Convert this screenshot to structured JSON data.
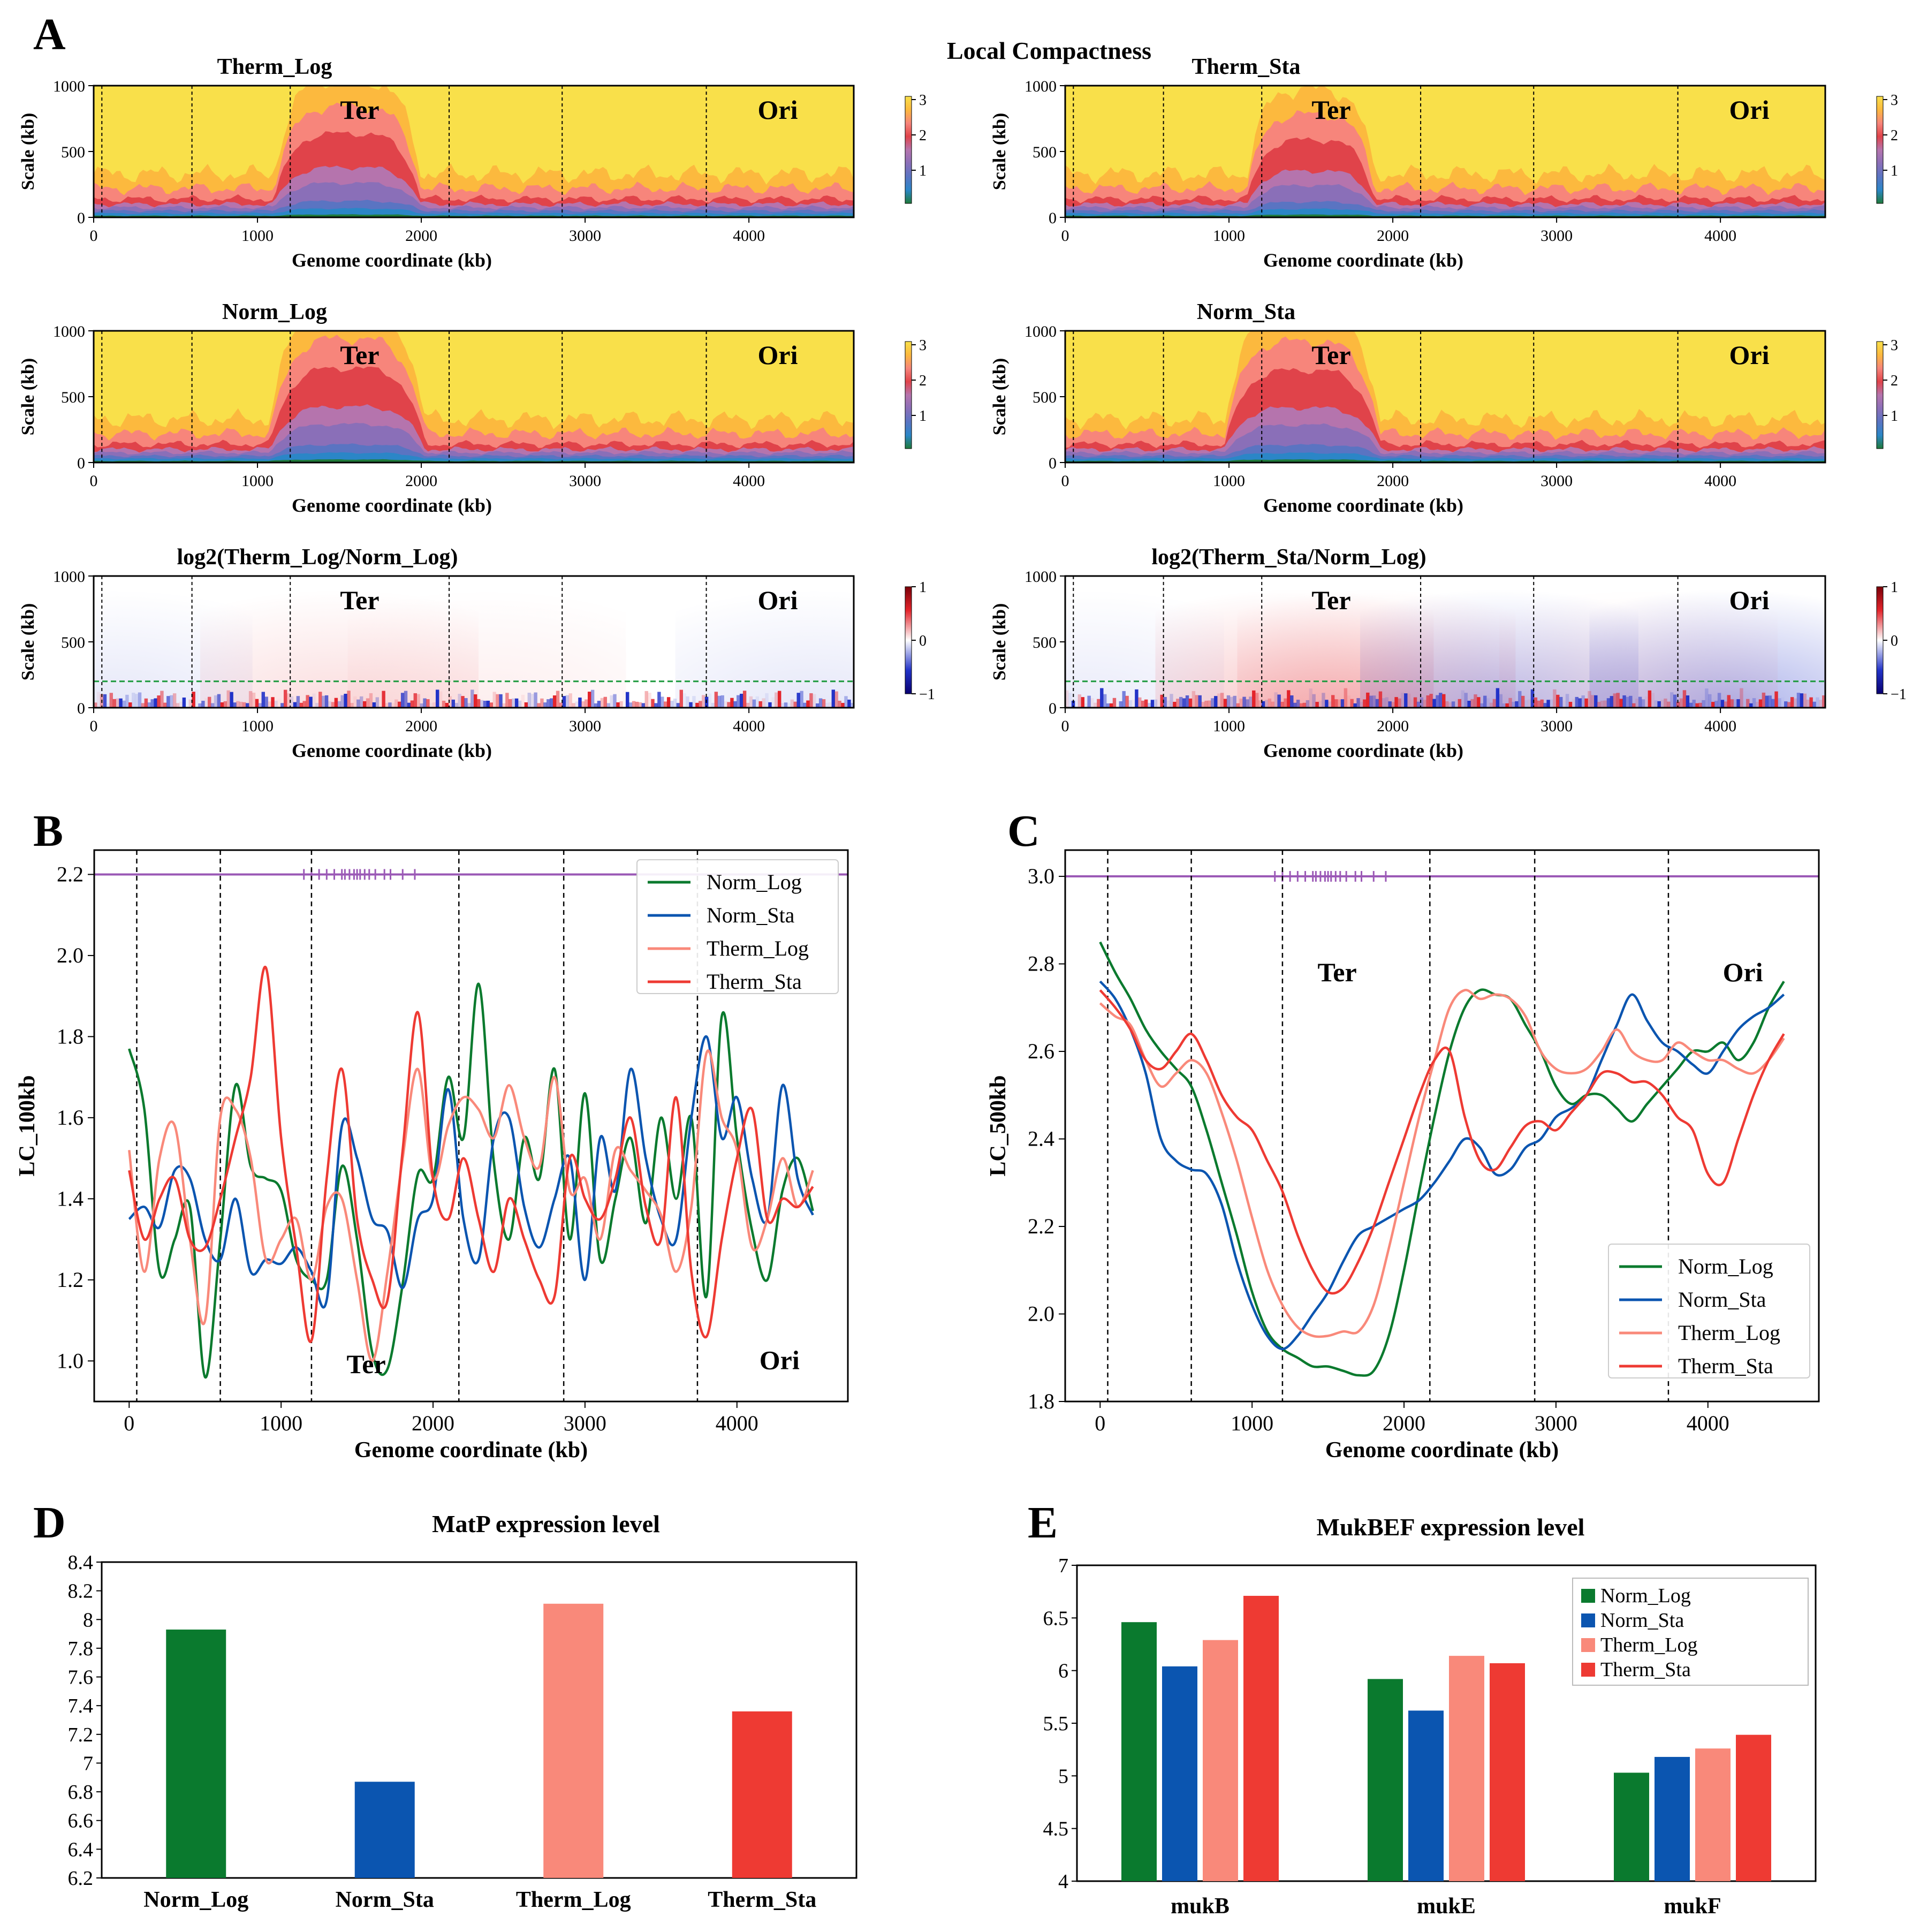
{
  "figure_title": "Local Compactness",
  "colors": {
    "norm_log": "#0a7a2e",
    "norm_sta": "#0b55b0",
    "therm_log": "#f9897a",
    "therm_sta": "#ee3a33",
    "lc_bands": [
      "#1f7a3a",
      "#2b86c7",
      "#5a74c2",
      "#8a6fb8",
      "#b574ad",
      "#e0434a",
      "#f7857b",
      "#fcb93e",
      "#f9e04a"
    ],
    "ratio_pos": "#e3242b",
    "ratio_neg": "#2233c8",
    "guide": "#9b59b6",
    "dashed_threshold": "#1e9a3e"
  },
  "panel_A": {
    "label": "A",
    "common": {
      "xlabel": "Genome coordinate (kb)",
      "ylabel": "Scale (kb)",
      "xticks": [
        "0",
        "1000",
        "2000",
        "3000",
        "4000"
      ],
      "yticks": [
        "0",
        "500",
        "1000"
      ],
      "boundaries_kb": [
        50,
        600,
        1200,
        2170,
        2860,
        3740
      ],
      "region_labels": {
        "ter": "Ter",
        "ori": "Ori"
      },
      "genome_length_kb": 4640,
      "scale_max_kb": 1000
    },
    "heatmaps": [
      {
        "title": "Therm_Log",
        "type": "lc",
        "colorbar_ticks": [
          "3",
          "2",
          "1"
        ],
        "peak_kb": 1550,
        "peak_height": 0.62,
        "ter_width_kb": 900
      },
      {
        "title": "Therm_Sta",
        "type": "lc",
        "colorbar_ticks": [
          "3",
          "2",
          "1"
        ],
        "peak_kb": 1500,
        "peak_height": 0.56,
        "ter_width_kb": 780
      },
      {
        "title": "Norm_Log",
        "type": "lc",
        "colorbar_ticks": [
          "3",
          "2",
          "1"
        ],
        "peak_kb": 1550,
        "peak_height": 0.72,
        "ter_width_kb": 950
      },
      {
        "title": "Norm_Sta",
        "type": "lc",
        "colorbar_ticks": [
          "3",
          "2",
          "1"
        ],
        "peak_kb": 1450,
        "peak_height": 0.7,
        "ter_width_kb": 950
      },
      {
        "title": "log2(Therm_Log/Norm_Log)",
        "type": "ratio",
        "colorbar_ticks": [
          "1",
          "0",
          "−1"
        ],
        "threshold_kb": 200
      },
      {
        "title": "log2(Therm_Sta/Norm_Log)",
        "type": "ratio",
        "colorbar_ticks": [
          "1",
          "0",
          "−1"
        ],
        "threshold_kb": 200
      }
    ]
  },
  "chart_data": [
    {
      "panel": "B",
      "type": "line",
      "title": "",
      "xlabel": "Genome coordinate (kb)",
      "ylabel": "LC_100kb",
      "xlim": [
        -230,
        4730
      ],
      "ylim": [
        0.9,
        2.26
      ],
      "xticks": [
        0,
        1000,
        2000,
        3000,
        4000
      ],
      "yticks": [
        1.0,
        1.2,
        1.4,
        1.6,
        1.8,
        2.0,
        2.2
      ],
      "ytick_labels": [
        "1.0",
        "1.2",
        "1.4",
        "1.6",
        "1.8",
        "2.0",
        "2.2"
      ],
      "guide_y": 2.2,
      "guide_marks_kb": [
        1150,
        1200,
        1250,
        1300,
        1350,
        1400,
        1420,
        1450,
        1480,
        1500,
        1520,
        1550,
        1580,
        1620,
        1680,
        1720,
        1800,
        1880
      ],
      "boundaries_kb": [
        50,
        600,
        1200,
        2170,
        2860,
        3740
      ],
      "region_labels": [
        {
          "text": "Ter",
          "x": 1560,
          "y": 0.97
        },
        {
          "text": "Ori",
          "x": 4280,
          "y": 0.98
        }
      ],
      "legend_position": "top-right",
      "x": [
        0,
        100,
        200,
        300,
        400,
        500,
        600,
        700,
        800,
        900,
        1000,
        1100,
        1200,
        1300,
        1400,
        1500,
        1600,
        1700,
        1800,
        1900,
        2000,
        2100,
        2200,
        2300,
        2400,
        2500,
        2600,
        2700,
        2800,
        2900,
        3000,
        3100,
        3200,
        3300,
        3400,
        3500,
        3600,
        3700,
        3800,
        3900,
        4000,
        4100,
        4200,
        4300,
        4400,
        4500
      ],
      "series": [
        {
          "name": "Norm_Log",
          "color_key": "norm_log",
          "values": [
            1.77,
            1.62,
            1.22,
            1.3,
            1.38,
            0.96,
            1.3,
            1.68,
            1.48,
            1.45,
            1.42,
            1.25,
            1.2,
            1.2,
            1.48,
            1.3,
            1.02,
            0.98,
            1.19,
            1.46,
            1.45,
            1.7,
            1.55,
            1.93,
            1.49,
            1.3,
            1.55,
            1.45,
            1.72,
            1.3,
            1.66,
            1.25,
            1.4,
            1.55,
            1.34,
            1.6,
            1.4,
            1.6,
            1.16,
            1.85,
            1.55,
            1.32,
            1.2,
            1.42,
            1.5,
            1.37
          ]
        },
        {
          "name": "Norm_Sta",
          "color_key": "norm_sta",
          "values": [
            1.35,
            1.38,
            1.33,
            1.47,
            1.45,
            1.3,
            1.25,
            1.4,
            1.22,
            1.25,
            1.24,
            1.28,
            1.22,
            1.15,
            1.58,
            1.5,
            1.35,
            1.32,
            1.18,
            1.35,
            1.4,
            1.67,
            1.35,
            1.25,
            1.55,
            1.6,
            1.38,
            1.28,
            1.4,
            1.5,
            1.2,
            1.55,
            1.42,
            1.72,
            1.5,
            1.35,
            1.3,
            1.6,
            1.8,
            1.55,
            1.65,
            1.45,
            1.35,
            1.68,
            1.45,
            1.36
          ]
        },
        {
          "name": "Therm_Log",
          "color_key": "therm_log",
          "values": [
            1.52,
            1.22,
            1.5,
            1.58,
            1.3,
            1.1,
            1.6,
            1.62,
            1.5,
            1.25,
            1.3,
            1.35,
            1.2,
            1.38,
            1.4,
            1.2,
            1.0,
            1.22,
            1.5,
            1.72,
            1.45,
            1.58,
            1.65,
            1.62,
            1.55,
            1.68,
            1.55,
            1.48,
            1.7,
            1.42,
            1.45,
            1.3,
            1.52,
            1.47,
            1.42,
            1.36,
            1.22,
            1.38,
            1.76,
            1.6,
            1.52,
            1.28,
            1.35,
            1.5,
            1.38,
            1.47
          ]
        },
        {
          "name": "Therm_Sta",
          "color_key": "therm_sta",
          "values": [
            1.47,
            1.3,
            1.4,
            1.45,
            1.3,
            1.28,
            1.4,
            1.55,
            1.7,
            1.97,
            1.55,
            1.28,
            1.05,
            1.45,
            1.72,
            1.35,
            1.2,
            1.15,
            1.52,
            1.86,
            1.45,
            1.35,
            1.5,
            1.35,
            1.22,
            1.4,
            1.3,
            1.2,
            1.16,
            1.5,
            1.4,
            1.35,
            1.45,
            1.6,
            1.38,
            1.3,
            1.65,
            1.22,
            1.06,
            1.3,
            1.5,
            1.62,
            1.35,
            1.4,
            1.38,
            1.43
          ]
        }
      ]
    },
    {
      "panel": "C",
      "type": "line",
      "title": "",
      "xlabel": "Genome coordinate (kb)",
      "ylabel": "LC_500kb",
      "xlim": [
        -230,
        4730
      ],
      "ylim": [
        1.8,
        3.06
      ],
      "xticks": [
        0,
        1000,
        2000,
        3000,
        4000
      ],
      "yticks": [
        1.8,
        2.0,
        2.2,
        2.4,
        2.6,
        2.8,
        3.0
      ],
      "ytick_labels": [
        "1.8",
        "2.0",
        "2.2",
        "2.4",
        "2.6",
        "2.8",
        "3.0"
      ],
      "guide_y": 3.0,
      "guide_marks_kb": [
        1150,
        1200,
        1250,
        1300,
        1350,
        1400,
        1420,
        1450,
        1480,
        1500,
        1520,
        1550,
        1580,
        1620,
        1680,
        1720,
        1800,
        1880
      ],
      "boundaries_kb": [
        50,
        600,
        1200,
        2170,
        2860,
        3740
      ],
      "region_labels": [
        {
          "text": "Ter",
          "x": 1560,
          "y": 2.76
        },
        {
          "text": "Ori",
          "x": 4230,
          "y": 2.76
        }
      ],
      "legend_position": "lower-right",
      "x": [
        0,
        100,
        200,
        300,
        400,
        500,
        600,
        700,
        800,
        900,
        1000,
        1100,
        1200,
        1300,
        1400,
        1500,
        1600,
        1700,
        1800,
        1900,
        2000,
        2100,
        2200,
        2300,
        2400,
        2500,
        2600,
        2700,
        2800,
        2900,
        3000,
        3100,
        3200,
        3300,
        3400,
        3500,
        3600,
        3700,
        3800,
        3900,
        4000,
        4100,
        4200,
        4300,
        4400,
        4500
      ],
      "series": [
        {
          "name": "Norm_Log",
          "color_key": "norm_log",
          "values": [
            2.85,
            2.78,
            2.72,
            2.65,
            2.6,
            2.56,
            2.52,
            2.42,
            2.3,
            2.18,
            2.05,
            1.96,
            1.92,
            1.9,
            1.88,
            1.88,
            1.87,
            1.86,
            1.87,
            1.95,
            2.1,
            2.28,
            2.45,
            2.6,
            2.7,
            2.74,
            2.73,
            2.72,
            2.66,
            2.6,
            2.52,
            2.48,
            2.5,
            2.5,
            2.47,
            2.44,
            2.48,
            2.52,
            2.56,
            2.6,
            2.6,
            2.62,
            2.58,
            2.62,
            2.7,
            2.76
          ]
        },
        {
          "name": "Norm_Sta",
          "color_key": "norm_sta",
          "values": [
            2.76,
            2.72,
            2.65,
            2.55,
            2.4,
            2.35,
            2.33,
            2.32,
            2.25,
            2.12,
            2.02,
            1.95,
            1.92,
            1.95,
            2.0,
            2.05,
            2.12,
            2.18,
            2.2,
            2.22,
            2.24,
            2.26,
            2.3,
            2.35,
            2.4,
            2.38,
            2.32,
            2.33,
            2.38,
            2.4,
            2.45,
            2.47,
            2.5,
            2.58,
            2.66,
            2.73,
            2.67,
            2.62,
            2.6,
            2.57,
            2.55,
            2.6,
            2.65,
            2.68,
            2.7,
            2.73
          ]
        },
        {
          "name": "Therm_Log",
          "color_key": "therm_log",
          "values": [
            2.71,
            2.68,
            2.66,
            2.58,
            2.52,
            2.55,
            2.58,
            2.55,
            2.46,
            2.35,
            2.22,
            2.1,
            2.02,
            1.97,
            1.95,
            1.95,
            1.96,
            1.96,
            2.02,
            2.15,
            2.3,
            2.45,
            2.58,
            2.7,
            2.74,
            2.72,
            2.73,
            2.72,
            2.68,
            2.6,
            2.56,
            2.55,
            2.56,
            2.6,
            2.65,
            2.6,
            2.58,
            2.58,
            2.62,
            2.6,
            2.58,
            2.58,
            2.56,
            2.55,
            2.58,
            2.63
          ]
        },
        {
          "name": "Therm_Sta",
          "color_key": "therm_sta",
          "values": [
            2.74,
            2.7,
            2.65,
            2.58,
            2.56,
            2.6,
            2.64,
            2.58,
            2.5,
            2.45,
            2.42,
            2.35,
            2.28,
            2.18,
            2.1,
            2.05,
            2.06,
            2.12,
            2.2,
            2.3,
            2.4,
            2.5,
            2.58,
            2.6,
            2.45,
            2.35,
            2.33,
            2.38,
            2.43,
            2.44,
            2.42,
            2.46,
            2.5,
            2.55,
            2.55,
            2.53,
            2.53,
            2.5,
            2.45,
            2.42,
            2.32,
            2.3,
            2.4,
            2.5,
            2.58,
            2.64
          ]
        }
      ]
    },
    {
      "panel": "D",
      "type": "bar",
      "title": "MatP expression level",
      "xlabel": "",
      "ylabel": "",
      "categories": [
        "Norm_Log",
        "Norm_Sta",
        "Therm_Log",
        "Therm_Sta"
      ],
      "values": [
        7.93,
        6.87,
        8.11,
        7.36
      ],
      "color_keys": [
        "norm_log",
        "norm_sta",
        "therm_log",
        "therm_sta"
      ],
      "ylim": [
        6.2,
        8.4
      ],
      "yticks": [
        6.2,
        6.4,
        6.6,
        6.8,
        7.0,
        7.2,
        7.4,
        7.6,
        7.8,
        8.0,
        8.2,
        8.4
      ],
      "ytick_labels": [
        "6.2",
        "6.4",
        "6.6",
        "6.8",
        "7",
        "7.2",
        "7.4",
        "7.6",
        "7.8",
        "8",
        "8.2",
        "8.4"
      ]
    },
    {
      "panel": "E",
      "type": "bar",
      "title": "MukBEF expression level",
      "xlabel": "",
      "ylabel": "",
      "categories": [
        "mukB",
        "mukE",
        "mukF"
      ],
      "series": [
        {
          "name": "Norm_Log",
          "color_key": "norm_log",
          "values": [
            6.46,
            5.92,
            5.03
          ]
        },
        {
          "name": "Norm_Sta",
          "color_key": "norm_sta",
          "values": [
            6.04,
            5.62,
            5.18
          ]
        },
        {
          "name": "Therm_Log",
          "color_key": "therm_log",
          "values": [
            6.29,
            6.14,
            5.26
          ]
        },
        {
          "name": "Therm_Sta",
          "color_key": "therm_sta",
          "values": [
            6.71,
            6.07,
            5.39
          ]
        }
      ],
      "ylim": [
        4,
        7
      ],
      "yticks": [
        4,
        4.5,
        5,
        5.5,
        6,
        6.5,
        7
      ],
      "ytick_labels": [
        "4",
        "4.5",
        "5",
        "5.5",
        "6",
        "6.5",
        "7"
      ],
      "legend_position": "top-right"
    }
  ]
}
